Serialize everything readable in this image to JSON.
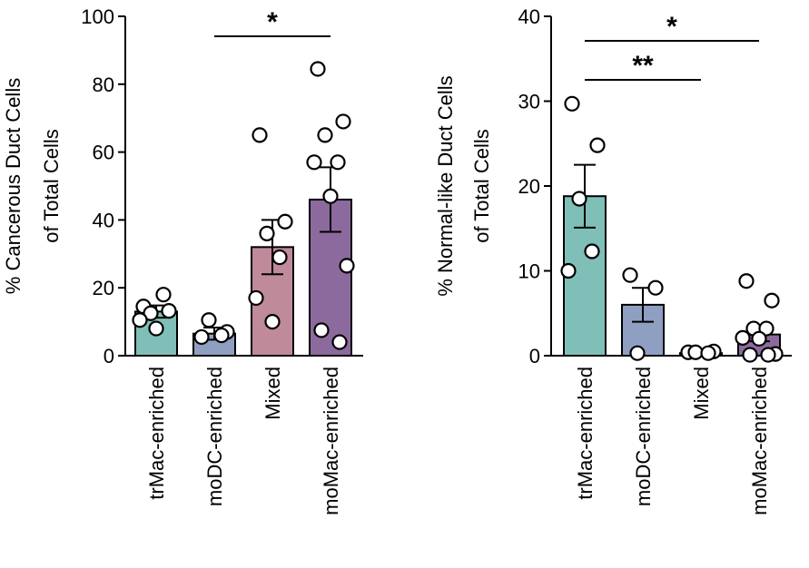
{
  "chart_data": [
    {
      "type": "bar",
      "categories": [
        "trMac-enriched",
        "moDC-enriched",
        "Mixed",
        "moMac-enriched"
      ],
      "ylabel_lines": [
        "% Cancerous Duct Cells",
        "of Total Cells"
      ],
      "ylim": [
        0,
        100
      ],
      "yticks": [
        0,
        20,
        40,
        60,
        80,
        100
      ],
      "bars": [
        {
          "mean": 13,
          "sem": 1.8,
          "color": "#7fbfb8",
          "points": [
            14.5,
            13.2,
            12.5,
            18,
            10.5,
            8
          ]
        },
        {
          "mean": 6.5,
          "sem": 1.8,
          "color": "#8f9fc2",
          "points": [
            5.5,
            7,
            10.5,
            6
          ]
        },
        {
          "mean": 32,
          "sem": 8,
          "color": "#bf8a99",
          "points": [
            65,
            39.5,
            36,
            29,
            17,
            10
          ]
        },
        {
          "mean": 46,
          "sem": 9.5,
          "color": "#8c6a9e",
          "points": [
            84.5,
            69,
            65,
            57,
            57,
            47,
            26.5,
            7.5,
            4
          ]
        }
      ],
      "significance": [
        {
          "from": 1,
          "to": 3,
          "label": "*"
        }
      ]
    },
    {
      "type": "bar",
      "categories": [
        "trMac-enriched",
        "moDC-enriched",
        "Mixed",
        "moMac-enriched"
      ],
      "ylabel_lines": [
        "% Normal-like Duct Cells",
        "of Total Cells"
      ],
      "ylim": [
        0,
        40
      ],
      "yticks": [
        0,
        10,
        20,
        30,
        40
      ],
      "bars": [
        {
          "mean": 18.8,
          "sem": 3.7,
          "color": "#7fbfb8",
          "points": [
            29.7,
            24.8,
            18.5,
            12.3,
            10
          ]
        },
        {
          "mean": 6,
          "sem": 2,
          "color": "#8f9fc2",
          "points": [
            9.5,
            8,
            0.3
          ]
        },
        {
          "mean": 0.3,
          "sem": 0.1,
          "color": "#bf8a99",
          "points": [
            0.4,
            0.5,
            0.4,
            0.3
          ]
        },
        {
          "mean": 2.5,
          "sem": 0.8,
          "color": "#8c6a9e",
          "points": [
            8.8,
            6.5,
            3.2,
            3.2,
            2.1,
            2.0,
            0.2,
            0.1,
            0.1
          ]
        }
      ],
      "significance": [
        {
          "from": 0,
          "to": 3,
          "label": "*"
        },
        {
          "from": 0,
          "to": 2,
          "label": "**"
        }
      ]
    }
  ]
}
